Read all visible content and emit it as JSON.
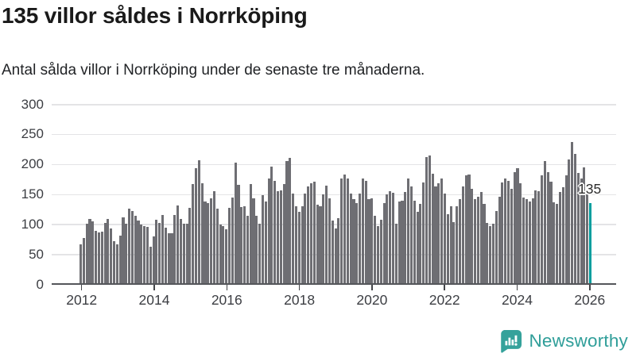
{
  "header": {
    "title": "135 villor såldes i Norrköping",
    "subtitle": "Antal sålda villor i Norrköping under de senaste tre månaderna."
  },
  "chart_data": {
    "type": "bar",
    "title": "135 villor såldes i Norrköping",
    "subtitle": "Antal sålda villor i Norrköping under de senaste tre månaderna.",
    "unit": "sålda villor (rullande tre månader)",
    "frequency": "monthly",
    "x_start": "2012-01",
    "x_end": "2026-01",
    "ylim": [
      0,
      300
    ],
    "yticks": [
      0,
      50,
      100,
      150,
      200,
      250,
      300
    ],
    "xtick_labels": [
      "2012",
      "2014",
      "2016",
      "2018",
      "2020",
      "2022",
      "2024",
      "2026"
    ],
    "grid": true,
    "legend": "none",
    "bar_color": "#6e6e73",
    "highlight_color": "#009e9e",
    "highlight_last_bar": true,
    "highlight_value": 135,
    "highlight_label": "135",
    "values": [
      66,
      77,
      100,
      108,
      105,
      88,
      86,
      87,
      102,
      109,
      93,
      71,
      66,
      80,
      111,
      101,
      126,
      121,
      114,
      106,
      99,
      97,
      95,
      62,
      79,
      107,
      102,
      115,
      94,
      85,
      85,
      115,
      131,
      108,
      100,
      100,
      127,
      166,
      193,
      206,
      168,
      138,
      135,
      143,
      154,
      126,
      99,
      97,
      91,
      127,
      144,
      202,
      165,
      128,
      129,
      114,
      167,
      143,
      114,
      100,
      148,
      138,
      176,
      195,
      172,
      154,
      156,
      166,
      205,
      210,
      151,
      130,
      120,
      130,
      151,
      163,
      168,
      170,
      132,
      129,
      149,
      164,
      143,
      106,
      93,
      110,
      176,
      183,
      176,
      151,
      142,
      135,
      151,
      176,
      172,
      141,
      143,
      114,
      97,
      107,
      135,
      149,
      154,
      152,
      100,
      138,
      139,
      153,
      176,
      163,
      139,
      120,
      133,
      169,
      212,
      214,
      184,
      163,
      168,
      176,
      151,
      116,
      129,
      103,
      130,
      142,
      163,
      181,
      182,
      159,
      142,
      145,
      153,
      134,
      102,
      97,
      101,
      121,
      146,
      169,
      176,
      172,
      159,
      187,
      193,
      168,
      144,
      141,
      138,
      143,
      156,
      154,
      181,
      205,
      186,
      171,
      136,
      134,
      153,
      161,
      181,
      208,
      236,
      217,
      185,
      176,
      194,
      150,
      135
    ]
  },
  "footer": {
    "brand": "Newsworthy",
    "brand_color": "#2f9e99",
    "icon": "bar-chart-speech-bubble-icon"
  }
}
